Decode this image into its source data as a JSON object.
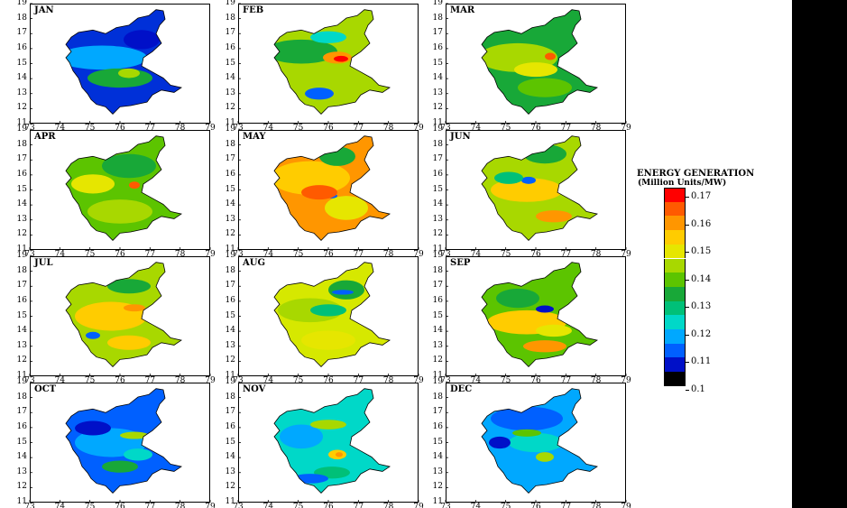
{
  "figure": {
    "panels": [
      {
        "month": "JAN",
        "scheme": "jan"
      },
      {
        "month": "FEB",
        "scheme": "feb"
      },
      {
        "month": "MAR",
        "scheme": "mar"
      },
      {
        "month": "APR",
        "scheme": "apr"
      },
      {
        "month": "MAY",
        "scheme": "may"
      },
      {
        "month": "JUN",
        "scheme": "jun"
      },
      {
        "month": "JUL",
        "scheme": "jul"
      },
      {
        "month": "AUG",
        "scheme": "aug"
      },
      {
        "month": "SEP",
        "scheme": "sep"
      },
      {
        "month": "OCT",
        "scheme": "oct"
      },
      {
        "month": "NOV",
        "scheme": "nov"
      },
      {
        "month": "DEC",
        "scheme": "dec"
      }
    ],
    "lat_ticks": [
      "11",
      "12",
      "13",
      "14",
      "15",
      "16",
      "17",
      "18",
      "19"
    ],
    "lon_ticks": [
      "73",
      "74",
      "75",
      "76",
      "77",
      "78",
      "79"
    ]
  },
  "legend": {
    "title": "ENERGY GENERATION",
    "unit": "(Million Units/MW)",
    "labels": [
      "0.17",
      "0.16",
      "0.15",
      "0.14",
      "0.13",
      "0.12",
      "0.11",
      "0.1"
    ],
    "colors": [
      "#ff0000",
      "#ff5a00",
      "#ff9600",
      "#ffcc00",
      "#e6e600",
      "#a8d800",
      "#5cc400",
      "#18a838",
      "#00c078",
      "#00d8c8",
      "#00a8ff",
      "#0060ff",
      "#0010c8",
      "#000000"
    ]
  }
}
